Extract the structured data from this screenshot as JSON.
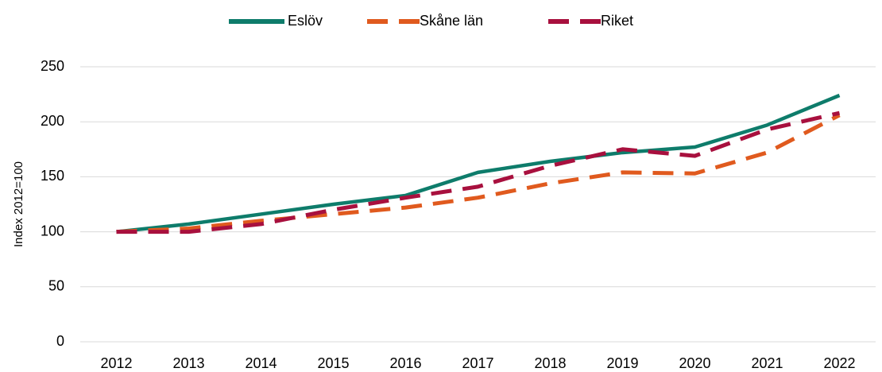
{
  "chart_data": {
    "type": "line",
    "y_label": "Index 2012=100",
    "categories": [
      "2012",
      "2013",
      "2014",
      "2015",
      "2016",
      "2017",
      "2018",
      "2019",
      "2020",
      "2021",
      "2022"
    ],
    "series": [
      {
        "name": "Eslöv",
        "color": "#0e7c6b",
        "dashed": false,
        "values": [
          100,
          107,
          116,
          125,
          133,
          154,
          164,
          172,
          177,
          197,
          224
        ]
      },
      {
        "name": "Skåne län",
        "color": "#e05a1e",
        "dashed": true,
        "values": [
          100,
          103,
          110,
          116,
          122,
          131,
          144,
          154,
          153,
          172,
          206
        ]
      },
      {
        "name": "Riket",
        "color": "#a8103e",
        "dashed": true,
        "values": [
          100,
          100,
          107,
          120,
          131,
          141,
          160,
          175,
          169,
          193,
          208
        ]
      }
    ],
    "ylim": [
      0,
      250
    ],
    "yticks": [
      0,
      50,
      100,
      150,
      200,
      250
    ],
    "grid": true,
    "legend": "top"
  }
}
